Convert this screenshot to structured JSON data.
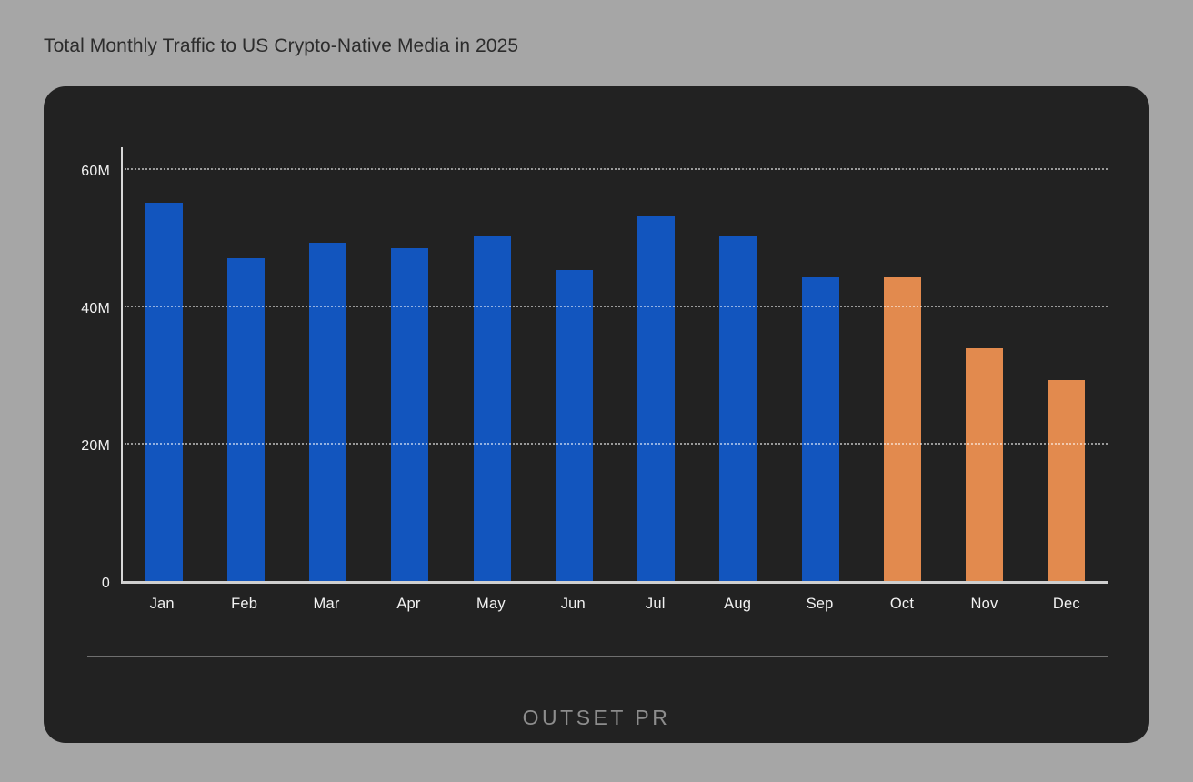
{
  "page": {
    "title": "Total Monthly Traffic to US Crypto-Native Media in 2025",
    "background_color": "#a6a6a6"
  },
  "card": {
    "background_color": "#222222"
  },
  "logo": {
    "text": "OUTSET PR"
  },
  "chart_data": {
    "type": "bar",
    "title": "Total Monthly Traffic to US Crypto-Native Media in 2025",
    "categories": [
      "Jan",
      "Feb",
      "Mar",
      "Apr",
      "May",
      "Jun",
      "Jul",
      "Aug",
      "Sep",
      "Oct",
      "Nov",
      "Dec"
    ],
    "values": [
      55.1,
      47.0,
      49.3,
      48.5,
      50.2,
      45.3,
      53.1,
      50.2,
      44.2,
      44.3,
      33.9,
      29.3
    ],
    "unit": "M monthly visits",
    "xlabel": "",
    "ylabel": "",
    "ylim": [
      0,
      63.5
    ],
    "yticks": [
      {
        "label": "0",
        "value": 0
      },
      {
        "label": "20M",
        "value": 20
      },
      {
        "label": "40M",
        "value": 40
      },
      {
        "label": "60M",
        "value": 60
      }
    ],
    "grid": "horizontal dotted lines at 20M, 40M, 60M",
    "legend": "none",
    "bar_colors": [
      "blue",
      "blue",
      "blue",
      "blue",
      "blue",
      "blue",
      "blue",
      "blue",
      "blue",
      "orange",
      "orange",
      "orange"
    ],
    "palette": {
      "blue": "#1255be",
      "orange": "#e28a4e"
    },
    "highlight_months": [
      "Oct",
      "Nov",
      "Dec"
    ]
  }
}
